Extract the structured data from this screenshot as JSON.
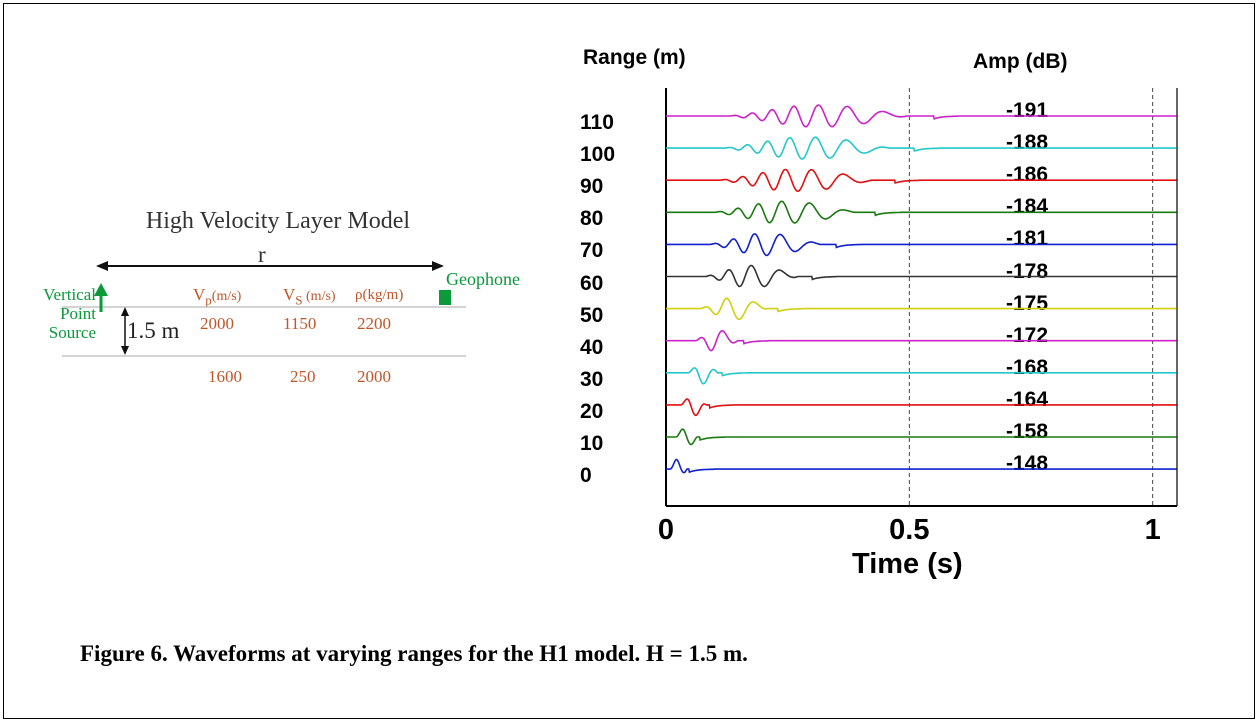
{
  "model": {
    "title": "High Velocity Layer Model",
    "r_label": "r",
    "source_label": "Vertical Point Source",
    "geophone_label": "Geophone",
    "thickness_label": "1.5 m",
    "headers": {
      "vp": "V",
      "vp_sub": "p",
      "vp_unit": "(m/s)",
      "vs": "V",
      "vs_sub": "S",
      "vs_unit": " (m/s)",
      "rho": "ρ(kg/m)"
    },
    "layer1": {
      "vp": "2000",
      "vs": "1150",
      "rho": "2200"
    },
    "layer2": {
      "vp": "1600",
      "vs": "250",
      "rho": "2000"
    },
    "colors": {
      "source": "#0a9a3a",
      "params": "#c0562a"
    }
  },
  "chart_data": {
    "type": "line",
    "title": "",
    "xlabel": "Time (s)",
    "range_header": "Range (m)",
    "amp_header": "Amp (dB)",
    "xlim": [
      0,
      1.05
    ],
    "x_ticks": [
      "0",
      "0.5",
      "1"
    ],
    "dashed_lines_at": [
      0.5,
      1.0
    ],
    "series": [
      {
        "range": "110",
        "amp": "-191",
        "color": "#cc22cc",
        "onset": 0.13,
        "freq_start": 28,
        "freq_end": 6,
        "duration": 0.42
      },
      {
        "range": "100",
        "amp": "-188",
        "color": "#22c8cc",
        "onset": 0.12,
        "freq_start": 28,
        "freq_end": 6,
        "duration": 0.39
      },
      {
        "range": "90",
        "amp": "-186",
        "color": "#e01010",
        "onset": 0.11,
        "freq_start": 28,
        "freq_end": 7,
        "duration": 0.36
      },
      {
        "range": "80",
        "amp": "-184",
        "color": "#1a7a10",
        "onset": 0.1,
        "freq_start": 28,
        "freq_end": 7,
        "duration": 0.33
      },
      {
        "range": "70",
        "amp": "-181",
        "color": "#1020cc",
        "onset": 0.09,
        "freq_start": 28,
        "freq_end": 8,
        "duration": 0.26
      },
      {
        "range": "60",
        "amp": "-178",
        "color": "#333333",
        "onset": 0.08,
        "freq_start": 28,
        "freq_end": 8,
        "duration": 0.22
      },
      {
        "range": "50",
        "amp": "-175",
        "color": "#d0d010",
        "onset": 0.07,
        "freq_start": 26,
        "freq_end": 9,
        "duration": 0.16
      },
      {
        "range": "40",
        "amp": "-172",
        "color": "#cc22cc",
        "onset": 0.06,
        "freq_start": 26,
        "freq_end": 12,
        "duration": 0.1
      },
      {
        "range": "30",
        "amp": "-168",
        "color": "#22c8cc",
        "onset": 0.045,
        "freq_start": 26,
        "freq_end": 14,
        "duration": 0.07
      },
      {
        "range": "20",
        "amp": "-164",
        "color": "#e01010",
        "onset": 0.03,
        "freq_start": 26,
        "freq_end": 16,
        "duration": 0.06
      },
      {
        "range": "10",
        "amp": "-158",
        "color": "#1a7a10",
        "onset": 0.02,
        "freq_start": 24,
        "freq_end": 16,
        "duration": 0.05
      },
      {
        "range": "0",
        "amp": "-148",
        "color": "#1020cc",
        "onset": 0.008,
        "freq_start": 24,
        "freq_end": 16,
        "duration": 0.04
      }
    ]
  },
  "caption": "Figure 6.  Waveforms at varying ranges for the H1 model.  H = 1.5 m."
}
